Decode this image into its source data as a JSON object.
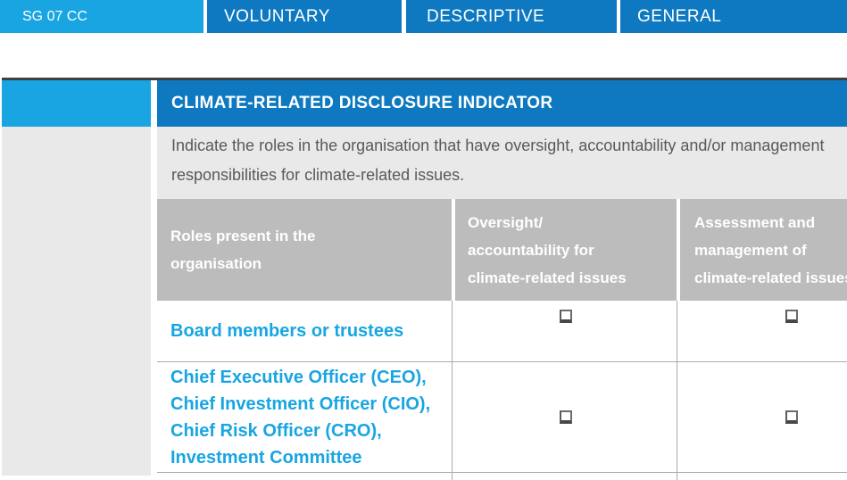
{
  "header_bar": {
    "indicator_id": "SG 07 CC",
    "tags": [
      "VOLUNTARY",
      "DESCRIPTIVE",
      "GENERAL"
    ]
  },
  "indicator": {
    "title": "CLIMATE-RELATED DISCLOSURE INDICATOR",
    "description": "Indicate the roles in the organisation that have oversight, accountability and/or management\nresponsibilities for climate-related issues.",
    "table": {
      "columns": [
        "Roles present in the\norganisation",
        "Oversight/\naccountability for\nclimate-related issues",
        "Assessment and\nmanagement of\nclimate-related issues"
      ],
      "rows": [
        {
          "role": "Board members or trustees",
          "oversight_checked": false,
          "assessment_checked": false
        },
        {
          "role": "Chief Executive Officer (CEO),\nChief Investment Officer (CIO),\nChief Risk Officer (CRO),\nInvestment Committee",
          "oversight_checked": false,
          "assessment_checked": false
        }
      ]
    }
  },
  "colors": {
    "light_blue": "#18A5E2",
    "dark_blue": "#0E79C0",
    "header_gray": "#BCBCBC",
    "panel_gray": "#E9E9E9",
    "text_gray": "#595959",
    "border_gray": "#ABABAB",
    "top_border_dark": "#3F3F3F"
  }
}
